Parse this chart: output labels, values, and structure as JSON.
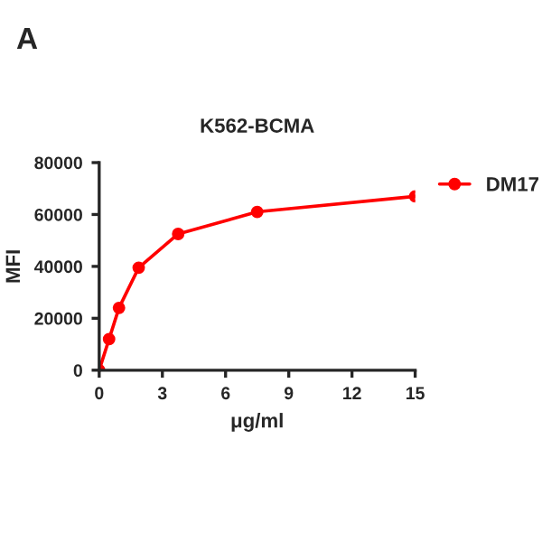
{
  "chart_data": {
    "type": "line",
    "title": "K562-BCMA",
    "xlabel": "μg/ml",
    "ylabel": "MFI",
    "annotations": [
      "A"
    ],
    "x": [
      0,
      0.47,
      0.94,
      1.875,
      3.75,
      7.5,
      15
    ],
    "series": [
      {
        "name": "DM17",
        "color": "#ff0000",
        "values": [
          0,
          12000,
          24000,
          39500,
          52500,
          61000,
          67000
        ]
      }
    ],
    "xlim": [
      0,
      15
    ],
    "xticks": [
      0,
      3,
      6,
      9,
      12,
      15
    ],
    "ylim": [
      0,
      80000
    ],
    "yticks": [
      0,
      20000,
      40000,
      60000,
      80000
    ],
    "grid": false,
    "legend": "top right",
    "marker": "circle",
    "line_style": "solid"
  }
}
